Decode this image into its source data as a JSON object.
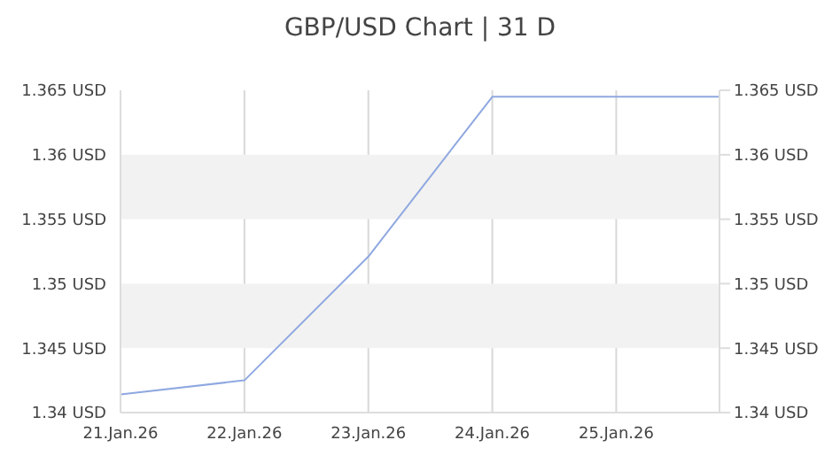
{
  "chart_data": {
    "type": "line",
    "title": "GBP/USD Chart | 31 D",
    "x": [
      "--01-21",
      "--01-22",
      "--01-23",
      "--01-24",
      "--01-25T20:00"
    ],
    "series": [
      {
        "color": "#8fa8e0",
        "values": [
          1.3414,
          1.3425,
          1.3521,
          1.3645,
          1.3645
        ]
      }
    ],
    "xlim": [
      "--01-21",
      "--01-25T20:00"
    ],
    "xticks": [
      {
        "value": "--01-21",
        "label": "21.Jan.26"
      },
      {
        "value": "--01-22",
        "label": "22.Jan.26"
      },
      {
        "value": "--01-23",
        "label": "23.Jan.26"
      },
      {
        "value": "--01-24",
        "label": "24.Jan.26"
      },
      {
        "value": "--01-25",
        "label": "25.Jan.26"
      }
    ],
    "ylim": [
      1.34,
      1.365
    ],
    "yticks": [
      {
        "value": 1.34,
        "label": "1.34 USD"
      },
      {
        "value": 1.345,
        "label": "1.345 USD"
      },
      {
        "value": 1.35,
        "label": "1.35 USD"
      },
      {
        "value": 1.355,
        "label": "1.355 USD"
      },
      {
        "value": 1.36,
        "label": "1.36 USD"
      },
      {
        "value": 1.365,
        "label": "1.365 USD"
      }
    ],
    "y2lim": [
      1.34,
      1.365
    ],
    "y2ticks": [
      {
        "value": 1.34,
        "label": "1.34 USD"
      },
      {
        "value": 1.345,
        "label": "1.345 USD"
      },
      {
        "value": 1.35,
        "label": "1.35 USD"
      },
      {
        "value": 1.355,
        "label": "1.355 USD"
      },
      {
        "value": 1.36,
        "label": "1.36 USD"
      },
      {
        "value": 1.365,
        "label": "1.365 USD"
      }
    ],
    "bands": [
      {
        "axis": "y",
        "from": 1.345,
        "to": 1.35,
        "color": "#f2f2f2"
      },
      {
        "axis": "y",
        "from": 1.355,
        "to": 1.36,
        "color": "#f2f2f2"
      }
    ],
    "grid": "x",
    "marker": "none",
    "line_style": "solid"
  }
}
